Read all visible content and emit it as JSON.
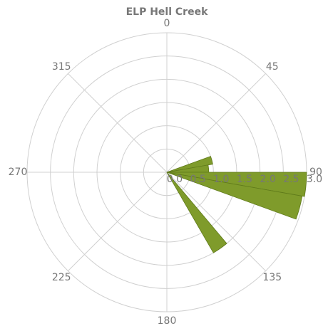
{
  "chart_data": {
    "type": "polar_bar",
    "title": "ELP Hell Creek",
    "x": [
      75,
      85,
      95,
      105,
      145
    ],
    "values": [
      1.0,
      0.9,
      3.0,
      2.95,
      2.0
    ],
    "bar_width": 10,
    "color": "#7f9b2b",
    "rlim": [
      0,
      3
    ],
    "rticks": [
      {
        "value": 0,
        "label": "0.0"
      },
      0.5,
      {
        "value": 1,
        "label": "1.0"
      },
      1.5,
      {
        "value": 2,
        "label": "2.0"
      },
      2.5,
      {
        "value": 3,
        "label": "3.0"
      }
    ],
    "xticks": [
      0,
      45,
      90,
      135,
      180,
      225,
      270,
      315
    ],
    "grid": true
  }
}
